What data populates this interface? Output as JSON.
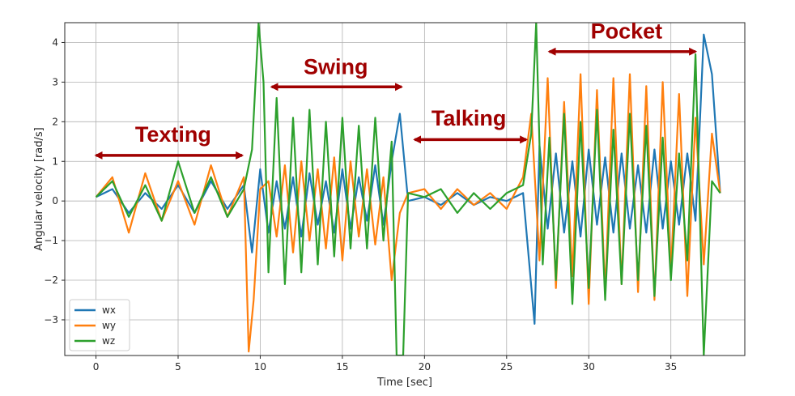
{
  "chart_data": {
    "type": "line",
    "title": "",
    "xlabel": "Time [sec]",
    "ylabel": "Angular velocity [rad/s]",
    "xlim": [
      -1.9,
      39.5
    ],
    "ylim": [
      -3.9,
      4.5
    ],
    "xticks": [
      0,
      5,
      10,
      15,
      20,
      25,
      30,
      35
    ],
    "yticks": [
      -3,
      -2,
      -1,
      0,
      1,
      2,
      3,
      4
    ],
    "xtick_labels": [
      "0",
      "5",
      "10",
      "15",
      "20",
      "25",
      "30",
      "35"
    ],
    "ytick_labels": [
      "−3",
      "−2",
      "−1",
      "0",
      "1",
      "2",
      "3",
      "4"
    ],
    "grid": true,
    "legend_position": "bottom-left",
    "series": [
      {
        "name": "wx",
        "color": "#1f77b4",
        "x": [
          0,
          1,
          2,
          3,
          4,
          5,
          6,
          7,
          8,
          9,
          9.5,
          10,
          10.5,
          11,
          11.5,
          12,
          12.5,
          13,
          13.5,
          14,
          14.5,
          15,
          15.5,
          16,
          16.5,
          17,
          17.5,
          18,
          18.5,
          19,
          20,
          21,
          22,
          23,
          24,
          25,
          26,
          26.7,
          27,
          27.5,
          28,
          28.5,
          29,
          29.5,
          30,
          30.5,
          31,
          31.5,
          32,
          32.5,
          33,
          33.5,
          34,
          34.5,
          35,
          35.5,
          36,
          36.5,
          37,
          37.5,
          38
        ],
        "values": [
          0.1,
          0.3,
          -0.3,
          0.2,
          -0.2,
          0.4,
          -0.3,
          0.5,
          -0.2,
          0.4,
          -1.3,
          0.8,
          -0.8,
          0.5,
          -0.7,
          0.6,
          -0.9,
          0.7,
          -0.6,
          0.5,
          -0.8,
          0.8,
          -0.7,
          0.6,
          -0.5,
          0.9,
          -0.6,
          1.0,
          2.2,
          0.0,
          0.1,
          -0.1,
          0.2,
          -0.1,
          0.1,
          0.0,
          0.2,
          -3.1,
          1.4,
          -0.7,
          1.2,
          -0.8,
          1.0,
          -0.9,
          1.3,
          -0.6,
          1.1,
          -0.8,
          1.2,
          -0.7,
          0.9,
          -0.8,
          1.3,
          -0.7,
          1.0,
          -0.6,
          1.2,
          -0.5,
          4.2,
          3.2,
          0.2
        ]
      },
      {
        "name": "wy",
        "color": "#ff7f0e",
        "x": [
          0,
          1,
          2,
          3,
          4,
          5,
          6,
          7,
          8,
          9,
          9.3,
          9.6,
          10,
          10.5,
          11,
          11.5,
          12,
          12.5,
          13,
          13.5,
          14,
          14.5,
          15,
          15.5,
          16,
          16.5,
          17,
          17.5,
          18,
          18.5,
          19,
          20,
          21,
          22,
          23,
          24,
          25,
          26,
          26.5,
          27,
          27.5,
          28,
          28.5,
          29,
          29.5,
          30,
          30.5,
          31,
          31.5,
          32,
          32.5,
          33,
          33.5,
          34,
          34.5,
          35,
          35.5,
          36,
          36.5,
          37,
          37.5,
          38
        ],
        "values": [
          0.1,
          0.6,
          -0.8,
          0.7,
          -0.5,
          0.5,
          -0.6,
          0.9,
          -0.4,
          0.6,
          -3.8,
          -2.5,
          0.3,
          0.5,
          -0.9,
          0.9,
          -1.3,
          1.0,
          -1.0,
          0.8,
          -1.2,
          1.1,
          -1.5,
          1.0,
          -0.9,
          0.8,
          -1.1,
          0.6,
          -2.0,
          -0.3,
          0.2,
          0.3,
          -0.2,
          0.3,
          -0.1,
          0.2,
          -0.2,
          0.6,
          2.2,
          -1.5,
          3.1,
          -2.2,
          2.5,
          -1.9,
          3.2,
          -2.6,
          2.8,
          -2.3,
          3.1,
          -2.1,
          3.2,
          -2.3,
          2.9,
          -2.5,
          3.0,
          -1.8,
          2.7,
          -2.4,
          2.1,
          -1.6,
          1.7,
          0.2
        ]
      },
      {
        "name": "wz",
        "color": "#2ca02c",
        "x": [
          0,
          1,
          2,
          3,
          4,
          5,
          6,
          7,
          8,
          9,
          9.5,
          9.9,
          10.2,
          10.5,
          11,
          11.5,
          12,
          12.5,
          13,
          13.5,
          14,
          14.5,
          15,
          15.5,
          16,
          16.5,
          17,
          17.5,
          18,
          18.3,
          18.7,
          19,
          20,
          21,
          22,
          23,
          24,
          25,
          26,
          26.5,
          26.8,
          27.2,
          27.6,
          28,
          28.5,
          29,
          29.5,
          30,
          30.5,
          31,
          31.5,
          32,
          32.5,
          33,
          33.5,
          34,
          34.5,
          35,
          35.5,
          36,
          36.5,
          37,
          37.5,
          38
        ],
        "values": [
          0.1,
          0.5,
          -0.4,
          0.4,
          -0.5,
          1.0,
          -0.3,
          0.6,
          -0.4,
          0.3,
          1.3,
          4.5,
          3.0,
          -1.8,
          2.6,
          -2.1,
          2.1,
          -1.8,
          2.3,
          -1.6,
          2.0,
          -1.4,
          2.1,
          -1.2,
          1.9,
          -1.2,
          2.1,
          -1.0,
          1.5,
          -3.9,
          -3.9,
          0.2,
          0.1,
          0.3,
          -0.3,
          0.2,
          -0.2,
          0.2,
          0.4,
          1.7,
          4.5,
          -1.6,
          1.6,
          -2.0,
          2.2,
          -2.6,
          2.0,
          -2.2,
          2.3,
          -2.5,
          1.8,
          -2.1,
          2.2,
          -2.0,
          1.9,
          -2.4,
          1.6,
          -2.0,
          1.2,
          -1.5,
          3.7,
          -3.9,
          0.5,
          0.2
        ]
      }
    ],
    "legend": [
      "wx",
      "wy",
      "wz"
    ],
    "annotations": [
      {
        "text": "Texting",
        "x_start": 0.0,
        "x_end": 8.9,
        "arrow_y": 1.15,
        "text_x": 4.7,
        "text_y": 1.5
      },
      {
        "text": "Swing",
        "x_start": 10.7,
        "x_end": 18.6,
        "arrow_y": 2.88,
        "text_x": 14.6,
        "text_y": 3.2
      },
      {
        "text": "Talking",
        "x_start": 19.4,
        "x_end": 26.2,
        "arrow_y": 1.55,
        "text_x": 22.7,
        "text_y": 1.9
      },
      {
        "text": "Pocket",
        "x_start": 27.6,
        "x_end": 36.5,
        "arrow_y": 3.77,
        "text_x": 32.3,
        "text_y": 4.1
      }
    ],
    "annotation_color": "#a00000"
  }
}
